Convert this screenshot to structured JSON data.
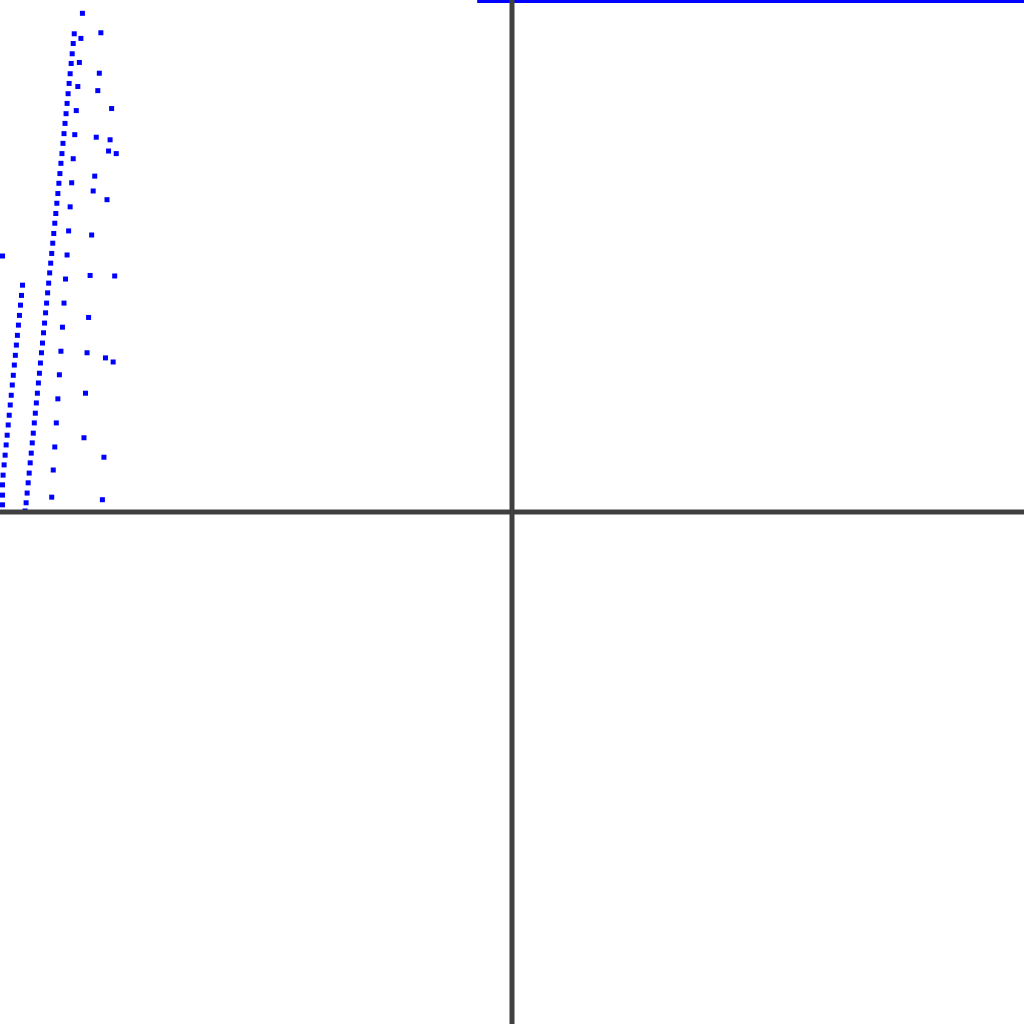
{
  "chart_data": {
    "type": "scatter",
    "title": "",
    "xlabel": "",
    "ylabel": "",
    "grid": false,
    "legend": "none",
    "xlim": [
      -1.0,
      1.0
    ],
    "ylim": [
      -1.0,
      1.0
    ],
    "colors": {
      "points": "#0000ff",
      "axes": "#404040",
      "top_line": "#0000ff",
      "background": "#ffffff"
    },
    "top_line": {
      "x": [
        -0.068,
        1.0
      ],
      "y": [
        1.0,
        1.0
      ]
    },
    "series": [
      {
        "x": [
          -1.0,
          -0.998,
          -0.996,
          -0.994,
          -0.992,
          -0.99,
          -0.988,
          -0.986,
          -0.984,
          -0.982,
          -0.98,
          -0.978,
          -0.976,
          -0.974,
          -0.972,
          -0.97,
          -0.968,
          -0.966,
          -0.964,
          -0.962,
          -0.96,
          -0.958,
          -0.956
        ],
        "y": [
          0.014,
          0.033,
          0.053,
          0.072,
          0.092,
          0.111,
          0.131,
          0.15,
          0.17,
          0.189,
          0.209,
          0.228,
          0.248,
          0.267,
          0.287,
          0.306,
          0.326,
          0.345,
          0.365,
          0.384,
          0.404,
          0.423,
          0.443
        ]
      },
      {
        "x": [
          -1.0,
          -0.951,
          -0.949,
          -0.947,
          -0.945,
          -0.943,
          -0.941,
          -0.939,
          -0.937,
          -0.935,
          -0.933,
          -0.931,
          -0.929,
          -0.927,
          -0.925,
          -0.923,
          -0.921,
          -0.919,
          -0.917,
          -0.915,
          -0.913,
          -0.911,
          -0.909,
          -0.907,
          -0.905,
          -0.903,
          -0.901,
          -0.899,
          -0.897,
          -0.895,
          -0.893,
          -0.891,
          -0.889,
          -0.887,
          -0.885,
          -0.883,
          -0.881,
          -0.879,
          -0.877,
          -0.875,
          -0.873,
          -0.871,
          -0.869,
          -0.867,
          -0.865,
          -0.863,
          -0.861,
          -0.859,
          -0.857,
          -0.855
        ],
        "y": [
          0.5,
          0.002,
          0.018,
          0.037,
          0.057,
          0.076,
          0.096,
          0.115,
          0.135,
          0.154,
          0.174,
          0.193,
          0.213,
          0.232,
          0.252,
          0.271,
          0.291,
          0.311,
          0.33,
          0.35,
          0.369,
          0.389,
          0.408,
          0.428,
          0.447,
          0.467,
          0.486,
          0.505,
          0.525,
          0.544,
          0.564,
          0.583,
          0.603,
          0.622,
          0.642,
          0.661,
          0.681,
          0.7,
          0.72,
          0.739,
          0.759,
          0.778,
          0.798,
          0.817,
          0.837,
          0.856,
          0.876,
          0.895,
          0.915,
          0.934
        ]
      },
      {
        "x": [
          -0.899,
          -0.896,
          -0.893,
          -0.89,
          -0.887,
          -0.884,
          -0.881,
          -0.878,
          -0.875,
          -0.872,
          -0.869,
          -0.866,
          -0.863,
          -0.86,
          -0.857,
          -0.854,
          -0.851,
          -0.848,
          -0.845,
          -0.842,
          -0.839,
          -0.836,
          -0.833,
          -0.83,
          -0.827,
          -0.824,
          -0.821,
          -0.818,
          -0.815,
          -0.812,
          -0.809,
          -0.806,
          -0.803,
          -0.8,
          -0.797,
          -0.794,
          -0.791,
          -0.788,
          -0.785,
          -0.782,
          -0.779,
          -0.776,
          -0.773
        ],
        "y": [
          0.029,
          0.082,
          0.127,
          0.174,
          0.221,
          0.268,
          0.314,
          0.361,
          0.408,
          0.455,
          0.502,
          0.549,
          0.596,
          0.643,
          0.69,
          0.737,
          0.784,
          0.831,
          0.878,
          0.925,
          0.974,
          0.145,
          0.232,
          0.311,
          0.38,
          0.462,
          0.541,
          0.627,
          0.656,
          0.732,
          0.823,
          0.857,
          0.936,
          0.024,
          0.107,
          0.301,
          0.61,
          0.705,
          0.727,
          0.788,
          0.293,
          0.461,
          0.7
        ]
      }
    ]
  }
}
